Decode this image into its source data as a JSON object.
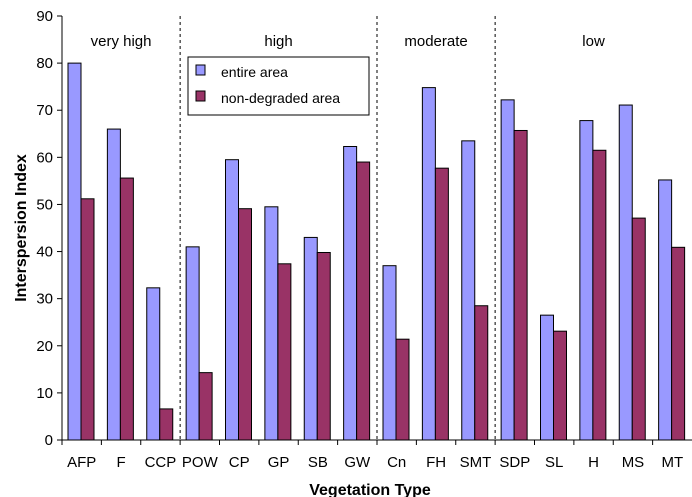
{
  "chart_data": {
    "type": "bar",
    "title": "",
    "xlabel": "Vegetation Type",
    "ylabel": "Interspersion Index",
    "ylim": [
      0,
      90
    ],
    "yticks": [
      0,
      10,
      20,
      30,
      40,
      50,
      60,
      70,
      80,
      90
    ],
    "grid": false,
    "legend_position": "top-center",
    "categories": [
      "AFP",
      "F",
      "CCP",
      "POW",
      "CP",
      "GP",
      "SB",
      "GW",
      "Cn",
      "FH",
      "SMT",
      "SDP",
      "SL",
      "H",
      "MS",
      "MT"
    ],
    "series": [
      {
        "name": "entire area",
        "color": "#9999ff",
        "values": [
          80.0,
          66.0,
          32.3,
          41.0,
          59.5,
          49.5,
          43.0,
          62.3,
          37.0,
          74.8,
          63.5,
          72.2,
          26.5,
          67.8,
          71.1,
          55.2
        ]
      },
      {
        "name": "non-degraded area",
        "color": "#993366",
        "values": [
          51.2,
          55.6,
          6.6,
          14.3,
          49.1,
          37.4,
          39.8,
          59.0,
          21.4,
          57.7,
          28.5,
          65.7,
          23.1,
          61.5,
          47.1,
          40.9
        ]
      }
    ],
    "groups": [
      {
        "label": "very high",
        "start": 0,
        "end": 2
      },
      {
        "label": "high",
        "start": 3,
        "end": 7
      },
      {
        "label": "moderate",
        "start": 8,
        "end": 10
      },
      {
        "label": "low",
        "start": 11,
        "end": 15
      }
    ]
  }
}
